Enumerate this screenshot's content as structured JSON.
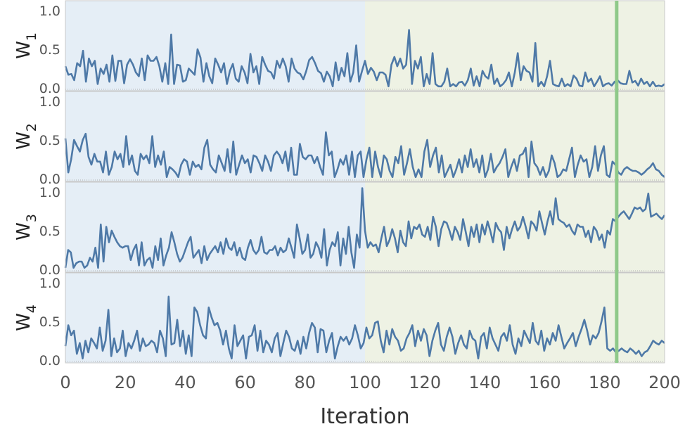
{
  "chart_data": {
    "type": "line",
    "xlabel": "Iteration",
    "xlim": [
      0,
      200
    ],
    "ylim": [
      0,
      1.05
    ],
    "xticks": [
      "0",
      "20",
      "40",
      "60",
      "80",
      "100",
      "120",
      "140",
      "160",
      "180",
      "200"
    ],
    "yticks": [
      "0.0",
      "0.5",
      "1.0"
    ],
    "phase_boundary": 100,
    "marker_x": 184,
    "colors": {
      "line": "#4e79a7",
      "phase1": "#e5eef6",
      "phase2": "#eef2e4",
      "marker": "#8fc98a",
      "frame": "#c8c8c8"
    },
    "panels": [
      {
        "label_base": "W",
        "label_sub": "1",
        "values": [
          0.28,
          0.17,
          0.18,
          0.1,
          0.32,
          0.28,
          0.48,
          0.08,
          0.38,
          0.28,
          0.35,
          0.05,
          0.25,
          0.18,
          0.3,
          0.08,
          0.42,
          0.09,
          0.35,
          0.35,
          0.06,
          0.3,
          0.37,
          0.3,
          0.2,
          0.15,
          0.38,
          0.1,
          0.42,
          0.35,
          0.35,
          0.4,
          0.28,
          0.08,
          0.32,
          0.05,
          0.69,
          0.05,
          0.3,
          0.29,
          0.08,
          0.1,
          0.25,
          0.21,
          0.17,
          0.5,
          0.39,
          0.08,
          0.32,
          0.15,
          0.06,
          0.38,
          0.3,
          0.2,
          0.32,
          0.05,
          0.22,
          0.31,
          0.12,
          0.08,
          0.28,
          0.2,
          0.06,
          0.44,
          0.2,
          0.28,
          0.05,
          0.4,
          0.3,
          0.22,
          0.2,
          0.12,
          0.35,
          0.26,
          0.38,
          0.28,
          0.08,
          0.38,
          0.25,
          0.2,
          0.18,
          0.11,
          0.22,
          0.36,
          0.4,
          0.32,
          0.22,
          0.19,
          0.08,
          0.21,
          0.15,
          0.02,
          0.33,
          0.1,
          0.26,
          0.15,
          0.45,
          0.08,
          0.2,
          0.55,
          0.08,
          0.22,
          0.35,
          0.18,
          0.26,
          0.21,
          0.1,
          0.2,
          0.2,
          0.17,
          0.02,
          0.3,
          0.4,
          0.28,
          0.38,
          0.25,
          0.3,
          0.75,
          0.05,
          0.35,
          0.25,
          0.4,
          0.02,
          0.18,
          0.05,
          0.45,
          0.05,
          0.02,
          0.02,
          0.08,
          0.25,
          0.02,
          0.05,
          0.02,
          0.07,
          0.08,
          0.03,
          0.1,
          0.25,
          0.03,
          0.15,
          0.02,
          0.22,
          0.15,
          0.12,
          0.3,
          0.05,
          0.12,
          0.02,
          0.05,
          0.1,
          0.2,
          0.02,
          0.2,
          0.45,
          0.1,
          0.28,
          0.22,
          0.2,
          0.08,
          0.58,
          0.02,
          0.08,
          0.02,
          0.15,
          0.35,
          0.05,
          0.03,
          0.02,
          0.12,
          0.02,
          0.05,
          0.02,
          0.16,
          0.12,
          0.03,
          0.02,
          0.2,
          0.08,
          0.12,
          0.02,
          0.08,
          0.15,
          0.02,
          0.05,
          0.06,
          0.03,
          0.08,
          0.1,
          0.06,
          0.05,
          0.05,
          0.22,
          0.07,
          0.09,
          0.03,
          0.12,
          0.05,
          0.08,
          0.02,
          0.08,
          0.02,
          0.03,
          0.02,
          0.05
        ],
        "x_end": 110
      },
      {
        "label_base": "W",
        "label_sub": "2",
        "values": [
          0.52,
          0.08,
          0.25,
          0.5,
          0.42,
          0.35,
          0.5,
          0.58,
          0.28,
          0.18,
          0.32,
          0.22,
          0.22,
          0.08,
          0.35,
          0.05,
          0.15,
          0.35,
          0.25,
          0.32,
          0.15,
          0.55,
          0.18,
          0.3,
          0.1,
          0.05,
          0.32,
          0.25,
          0.3,
          0.2,
          0.55,
          0.15,
          0.3,
          0.18,
          0.35,
          0.02,
          0.15,
          0.12,
          0.08,
          0.02,
          0.18,
          0.25,
          0.22,
          0.05,
          0.22,
          0.15,
          0.18,
          0.12,
          0.4,
          0.5,
          0.18,
          0.12,
          0.08,
          0.3,
          0.2,
          0.1,
          0.38,
          0.08,
          0.48,
          0.05,
          0.18,
          0.3,
          0.2,
          0.25,
          0.08,
          0.3,
          0.28,
          0.2,
          0.1,
          0.3,
          0.22,
          0.1,
          0.3,
          0.35,
          0.3,
          0.2,
          0.35,
          0.1,
          0.4,
          0.05,
          0.05,
          0.45,
          0.28,
          0.25,
          0.3,
          0.3,
          0.2,
          0.28,
          0.15,
          0.05,
          0.6,
          0.3,
          0.35,
          0.02,
          0.12,
          0.25,
          0.18,
          0.3,
          0.05,
          0.35,
          0.02,
          0.3,
          0.35,
          0.02,
          0.25,
          0.4,
          0.02,
          0.35,
          0.15,
          0.02,
          0.3,
          0.25,
          0.1,
          0.02,
          0.28,
          0.2,
          0.42,
          0.05,
          0.2,
          0.38,
          0.15,
          0.02,
          0.12,
          0.02,
          0.35,
          0.5,
          0.15,
          0.3,
          0.4,
          0.08,
          0.3,
          0.02,
          0.1,
          0.18,
          0.02,
          0.12,
          0.25,
          0.08,
          0.3,
          0.15,
          0.38,
          0.15,
          0.25,
          0.08,
          0.3,
          0.02,
          0.12,
          0.32,
          0.08,
          0.15,
          0.2,
          0.28,
          0.38,
          0.02,
          0.15,
          0.25,
          0.1,
          0.3,
          0.32,
          0.4,
          0.02,
          0.48,
          0.2,
          0.15,
          0.05,
          0.15,
          0.02,
          0.1,
          0.3,
          0.2,
          0.02,
          0.05,
          0.12,
          0.1,
          0.25,
          0.4,
          0.02,
          0.18,
          0.3,
          0.22,
          0.25,
          0.02,
          0.15,
          0.42,
          0.1,
          0.3,
          0.42,
          0.05,
          0.02,
          0.22,
          0.18,
          0.08,
          0.05,
          0.12,
          0.15,
          0.12,
          0.1,
          0.1,
          0.08,
          0.05,
          0.08,
          0.12,
          0.15,
          0.2,
          0.12,
          0.1,
          0.05,
          0.02
        ]
      },
      {
        "label_base": "W",
        "label_sub": "3",
        "values": [
          0.02,
          0.25,
          0.22,
          0.02,
          0.08,
          0.1,
          0.1,
          0.02,
          0.05,
          0.15,
          0.1,
          0.28,
          0.02,
          0.58,
          0.1,
          0.55,
          0.35,
          0.5,
          0.42,
          0.35,
          0.3,
          0.28,
          0.3,
          0.3,
          0.12,
          0.25,
          0.32,
          0.05,
          0.35,
          0.05,
          0.12,
          0.15,
          0.02,
          0.3,
          0.12,
          0.4,
          0.05,
          0.18,
          0.28,
          0.48,
          0.35,
          0.2,
          0.1,
          0.15,
          0.25,
          0.35,
          0.42,
          0.15,
          0.2,
          0.25,
          0.08,
          0.3,
          0.12,
          0.2,
          0.25,
          0.3,
          0.22,
          0.35,
          0.2,
          0.4,
          0.28,
          0.25,
          0.35,
          0.18,
          0.28,
          0.15,
          0.12,
          0.28,
          0.38,
          0.25,
          0.2,
          0.25,
          0.42,
          0.22,
          0.2,
          0.25,
          0.25,
          0.3,
          0.18,
          0.28,
          0.22,
          0.25,
          0.4,
          0.28,
          0.15,
          0.58,
          0.4,
          0.2,
          0.25,
          0.45,
          0.15,
          0.2,
          0.35,
          0.28,
          0.15,
          0.52,
          0.05,
          0.25,
          0.35,
          0.3,
          0.48,
          0.05,
          0.4,
          0.2,
          0.55,
          0.22,
          0.02,
          0.45,
          0.28,
          1.05,
          0.5,
          0.28,
          0.35,
          0.3,
          0.32,
          0.22,
          0.4,
          0.55,
          0.3,
          0.38,
          0.52,
          0.4,
          0.22,
          0.5,
          0.35,
          0.3,
          0.62,
          0.4,
          0.55,
          0.52,
          0.58,
          0.45,
          0.42,
          0.55,
          0.38,
          0.68,
          0.55,
          0.3,
          0.52,
          0.62,
          0.6,
          0.5,
          0.38,
          0.55,
          0.48,
          0.38,
          0.65,
          0.48,
          0.3,
          0.55,
          0.42,
          0.58,
          0.35,
          0.58,
          0.45,
          0.62,
          0.5,
          0.35,
          0.6,
          0.52,
          0.48,
          0.25,
          0.55,
          0.4,
          0.52,
          0.62,
          0.5,
          0.55,
          0.68,
          0.55,
          0.4,
          0.62,
          0.58,
          0.5,
          0.75,
          0.6,
          0.45,
          0.62,
          0.75,
          0.58,
          0.92,
          0.65,
          0.62,
          0.6,
          0.55,
          0.58,
          0.5,
          0.45,
          0.58,
          0.55,
          0.55,
          0.42,
          0.5,
          0.35,
          0.55,
          0.5,
          0.38,
          0.45,
          0.28,
          0.5,
          0.45,
          0.65,
          0.62,
          0.68,
          0.72,
          0.75,
          0.7,
          0.65,
          0.72,
          0.8,
          0.78,
          0.8,
          0.75,
          0.78,
          0.98,
          0.68,
          0.7,
          0.72,
          0.68,
          0.65,
          0.7
        ]
      },
      {
        "label_base": "W",
        "label_sub": "4",
        "values": [
          0.18,
          0.45,
          0.32,
          0.38,
          0.08,
          0.22,
          0.02,
          0.25,
          0.1,
          0.28,
          0.22,
          0.15,
          0.42,
          0.12,
          0.25,
          0.65,
          0.05,
          0.28,
          0.1,
          0.15,
          0.38,
          0.05,
          0.22,
          0.15,
          0.25,
          0.38,
          0.12,
          0.28,
          0.18,
          0.2,
          0.25,
          0.22,
          0.1,
          0.38,
          0.28,
          0.05,
          0.82,
          0.2,
          0.22,
          0.52,
          0.18,
          0.38,
          0.08,
          0.32,
          0.05,
          0.68,
          0.62,
          0.45,
          0.32,
          0.28,
          0.68,
          0.55,
          0.45,
          0.48,
          0.38,
          0.2,
          0.38,
          0.15,
          0.02,
          0.45,
          0.18,
          0.25,
          0.32,
          0.02,
          0.3,
          0.32,
          0.45,
          0.12,
          0.38,
          0.1,
          0.25,
          0.2,
          0.1,
          0.28,
          0.35,
          0.05,
          0.22,
          0.38,
          0.3,
          0.15,
          0.12,
          0.25,
          0.08,
          0.3,
          0.15,
          0.35,
          0.48,
          0.42,
          0.1,
          0.4,
          0.38,
          0.1,
          0.25,
          0.35,
          0.02,
          0.18,
          0.3,
          0.25,
          0.3,
          0.2,
          0.28,
          0.45,
          0.32,
          0.15,
          0.22,
          0.42,
          0.28,
          0.32,
          0.48,
          0.5,
          0.25,
          0.1,
          0.38,
          0.2,
          0.4,
          0.3,
          0.25,
          0.12,
          0.15,
          0.28,
          0.35,
          0.45,
          0.18,
          0.38,
          0.25,
          0.4,
          0.32,
          0.05,
          0.25,
          0.38,
          0.48,
          0.2,
          0.12,
          0.3,
          0.42,
          0.3,
          0.08,
          0.22,
          0.32,
          0.2,
          0.15,
          0.38,
          0.28,
          0.25,
          0.02,
          0.3,
          0.35,
          0.15,
          0.42,
          0.28,
          0.2,
          0.12,
          0.3,
          0.35,
          0.25,
          0.45,
          0.2,
          0.08,
          0.28,
          0.18,
          0.38,
          0.3,
          0.22,
          0.48,
          0.25,
          0.2,
          0.38,
          0.12,
          0.28,
          0.2,
          0.35,
          0.25,
          0.45,
          0.3,
          0.15,
          0.22,
          0.28,
          0.35,
          0.18,
          0.3,
          0.4,
          0.52,
          0.38,
          0.2,
          0.32,
          0.28,
          0.35,
          0.5,
          0.68,
          0.15,
          0.12,
          0.15,
          0.1,
          0.12,
          0.15,
          0.12,
          0.1,
          0.15,
          0.12,
          0.08,
          0.12,
          0.05,
          0.1,
          0.12,
          0.18,
          0.25,
          0.22,
          0.2,
          0.25,
          0.22
        ]
      }
    ]
  }
}
